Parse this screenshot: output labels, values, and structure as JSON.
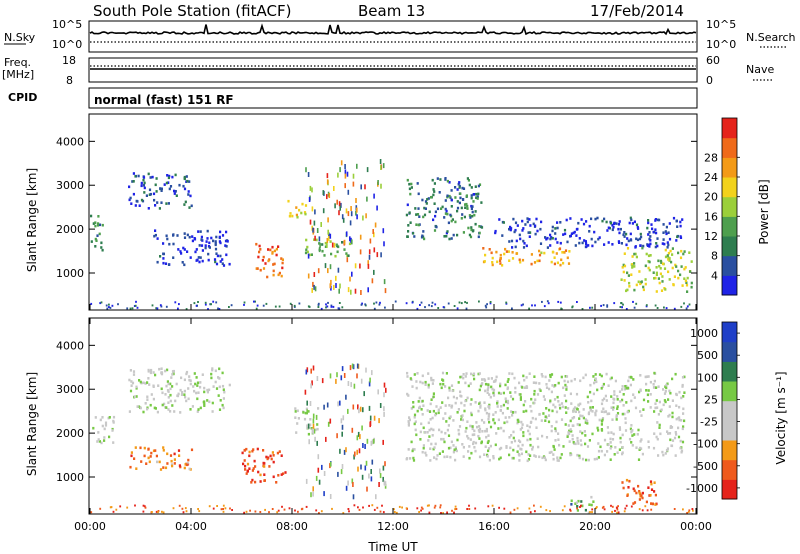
{
  "header": {
    "station": "South Pole Station (fitACF)",
    "beam": "Beam 13",
    "date": "17/Feb/2014"
  },
  "panels": {
    "nsky": {
      "label": "N.Sky",
      "right_label": "N.Search",
      "left_ticks": [
        "10^5",
        "10^0"
      ],
      "right_ticks": [
        "10^5",
        "10^0"
      ]
    },
    "freq": {
      "label_line1": "Freq.",
      "label_line2": "[MHz]",
      "right_label": "Nave",
      "left_ticks": [
        "18",
        "8"
      ],
      "right_ticks": [
        "60",
        "0"
      ]
    },
    "cpid": {
      "label": "CPID",
      "value": "normal (fast) 151 RF"
    }
  },
  "x_axis": {
    "label": "Time UT",
    "ticks": [
      "00:00",
      "04:00",
      "08:00",
      "12:00",
      "16:00",
      "20:00",
      "00:00"
    ]
  },
  "colors": {
    "power": [
      "#1f23e6",
      "#2a4fa0",
      "#2e7d4f",
      "#4e9f4e",
      "#9bcf3a",
      "#f2d21c",
      "#f39a17",
      "#ef6a1a",
      "#e5231b"
    ],
    "velocity": [
      "#e5231b",
      "#ef5a1d",
      "#f39a17",
      "#c8c8c8",
      "#c8c8c8",
      "#77c944",
      "#2e7d4f",
      "#2a4fa0",
      "#1f3fc8"
    ]
  },
  "chart_data": [
    {
      "type": "heatmap",
      "name": "power",
      "ylabel": "Slant Range [km]",
      "xlabel": "",
      "yticks": [
        1000,
        2000,
        3000,
        4000
      ],
      "ylim": [
        180,
        4600
      ],
      "xlim": [
        0,
        24
      ],
      "colorbar_label": "Power [dB]",
      "colorbar_ticks": [
        4,
        8,
        12,
        16,
        20,
        24,
        28
      ],
      "regions": [
        {
          "t0": 0.0,
          "t1": 0.5,
          "r0": 1500,
          "r1": 2400,
          "level": 0.3
        },
        {
          "t0": 1.5,
          "t1": 4.0,
          "r0": 2500,
          "r1": 3300,
          "level": 0.15
        },
        {
          "t0": 2.5,
          "t1": 5.5,
          "r0": 1200,
          "r1": 2000,
          "level": 0.1
        },
        {
          "t0": 6.5,
          "t1": 7.6,
          "r0": 900,
          "r1": 1700,
          "level": 0.85
        },
        {
          "t0": 7.8,
          "t1": 8.6,
          "r0": 2300,
          "r1": 2700,
          "level": 0.6
        },
        {
          "t0": 8.5,
          "t1": 10.3,
          "r0": 1400,
          "r1": 1800,
          "level": 0.4
        },
        {
          "t0": 12.5,
          "t1": 15.5,
          "r0": 1800,
          "r1": 3200,
          "level": 0.25
        },
        {
          "t0": 15.5,
          "t1": 19.0,
          "r0": 1200,
          "r1": 1600,
          "level": 0.7
        },
        {
          "t0": 16.0,
          "t1": 23.5,
          "r0": 1600,
          "r1": 2300,
          "level": 0.1
        },
        {
          "t0": 21.0,
          "t1": 23.8,
          "r0": 600,
          "r1": 1600,
          "level": 0.5
        }
      ]
    },
    {
      "type": "heatmap",
      "name": "velocity",
      "ylabel": "Slant Range [km]",
      "xlabel": "Time UT",
      "yticks": [
        1000,
        2000,
        3000,
        4000
      ],
      "ylim": [
        180,
        4600
      ],
      "xlim": [
        0,
        24
      ],
      "colorbar_label": "Velocity [m s⁻¹]",
      "colorbar_ticks": [
        1000,
        500,
        100,
        25,
        -25,
        -100,
        -500,
        -1000
      ],
      "regions": [
        {
          "t0": 0.0,
          "t1": 1.0,
          "r0": 1800,
          "r1": 2400,
          "level": 0.5
        },
        {
          "t0": 1.5,
          "t1": 5.5,
          "r0": 2500,
          "r1": 3500,
          "level": 0.5
        },
        {
          "t0": 1.5,
          "t1": 4.0,
          "r0": 1200,
          "r1": 1700,
          "level": 0.2
        },
        {
          "t0": 6.0,
          "t1": 7.7,
          "r0": 900,
          "r1": 1700,
          "level": 0.1
        },
        {
          "t0": 8.0,
          "t1": 9.0,
          "r0": 2000,
          "r1": 2600,
          "level": 0.5
        },
        {
          "t0": 12.5,
          "t1": 23.5,
          "r0": 1400,
          "r1": 3400,
          "level": 0.5
        },
        {
          "t0": 19.0,
          "t1": 20.0,
          "r0": 200,
          "r1": 600,
          "level": 0.65
        },
        {
          "t0": 21.0,
          "t1": 22.5,
          "r0": 400,
          "r1": 1000,
          "level": 0.15
        }
      ]
    }
  ]
}
